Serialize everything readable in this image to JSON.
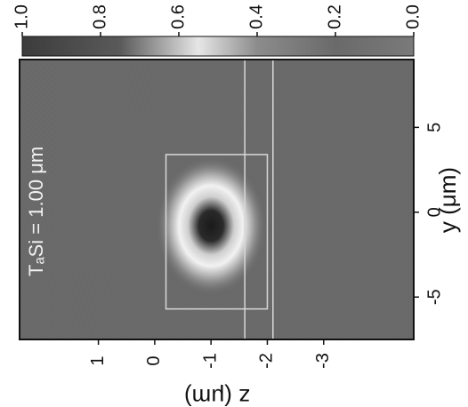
{
  "chart_data": {
    "type": "heatmap",
    "title": "",
    "annotation": "TₐSi = 1.00 μm",
    "xlabel": "y (μm)",
    "ylabel": "z (μm)",
    "x_ticks": [
      "-5",
      "0",
      "5"
    ],
    "x_tick_values": [
      -5,
      0,
      5
    ],
    "y_ticks": [
      "1",
      "0",
      "-1",
      "-2",
      "-3"
    ],
    "y_tick_values": [
      1,
      0,
      -1,
      -2,
      -3
    ],
    "xlim": [
      -7.5,
      9
    ],
    "ylim": [
      -4.6,
      2.4
    ],
    "colorbar": {
      "ticks": [
        "1.0",
        "0.8",
        "0.6",
        "0.4",
        "0.2",
        "0.0"
      ],
      "tick_values": [
        1.0,
        0.8,
        0.6,
        0.4,
        0.2,
        0.0
      ],
      "range": [
        0,
        1
      ]
    },
    "field_center": [
      -0.8,
      -1.0
    ],
    "field_peak": 1.0,
    "waveguide_box_y": [
      -5.7,
      3.4
    ],
    "waveguide_box_z": [
      -0.2,
      -2.0
    ],
    "layer_lines_z": [
      -1.6,
      -2.1
    ],
    "background_value": 0.62,
    "colors": {
      "background": "#6a6a6a",
      "frame": "#111111",
      "box_line": "#d8d8d8"
    }
  }
}
